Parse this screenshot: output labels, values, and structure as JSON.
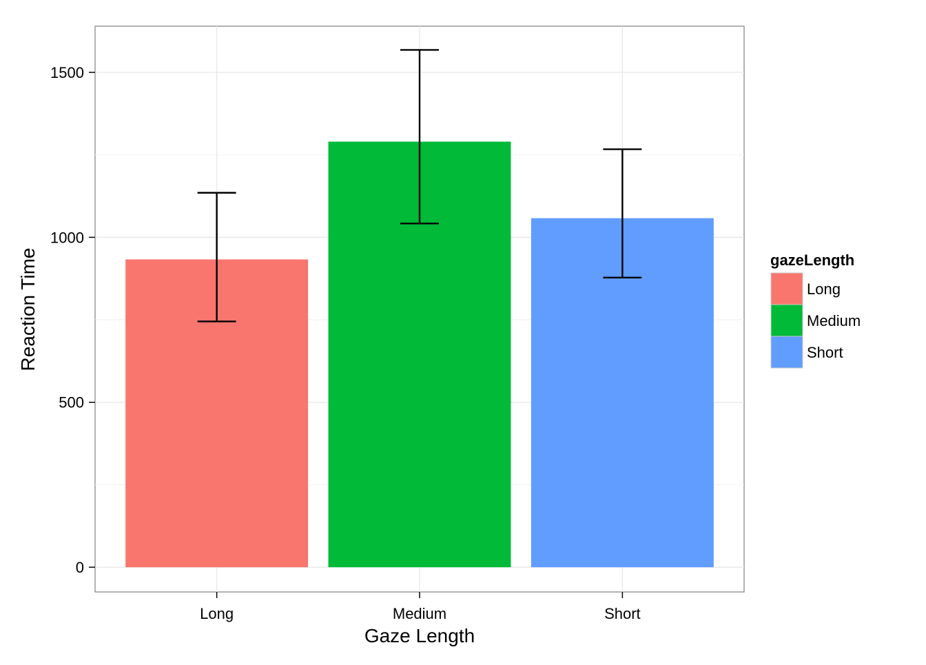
{
  "chart_data": {
    "type": "bar",
    "categories": [
      "Long",
      "Medium",
      "Short"
    ],
    "values": [
      933,
      1290,
      1058
    ],
    "error_low": [
      745,
      1042,
      878
    ],
    "error_high": [
      1135,
      1568,
      1267
    ],
    "xlabel": "Gaze Length",
    "ylabel": "Reaction Time",
    "ylim": [
      -75,
      1640
    ],
    "y_ticks": [
      0,
      500,
      1000,
      1500
    ],
    "grid": true,
    "legend": {
      "title": "gazeLength",
      "placement": "right",
      "entries": [
        "Long",
        "Medium",
        "Short"
      ]
    },
    "colors": [
      "#F8766D",
      "#00BA38",
      "#619CFF"
    ]
  }
}
